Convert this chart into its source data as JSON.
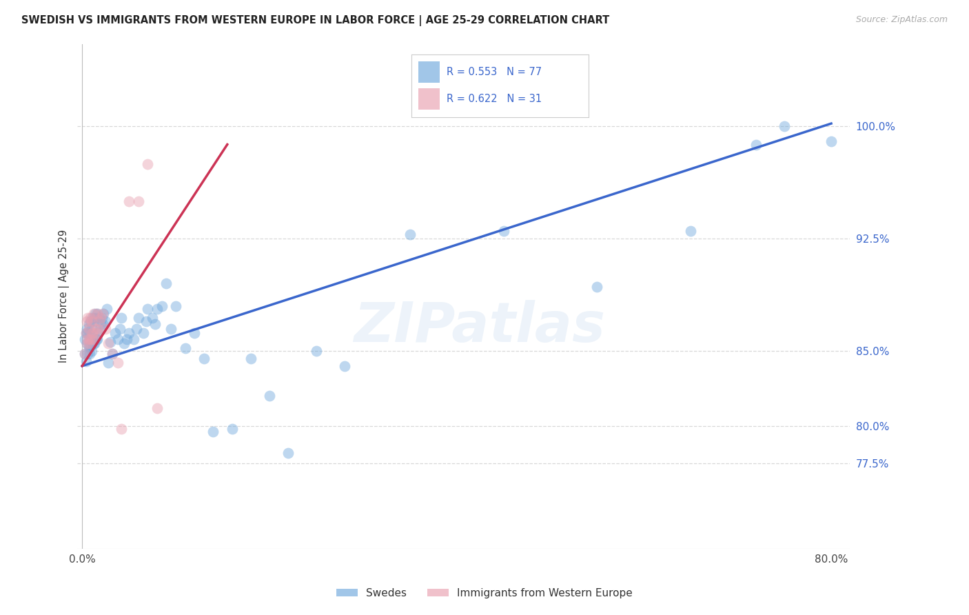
{
  "title": "SWEDISH VS IMMIGRANTS FROM WESTERN EUROPE IN LABOR FORCE | AGE 25-29 CORRELATION CHART",
  "source": "Source: ZipAtlas.com",
  "ylabel": "In Labor Force | Age 25-29",
  "xlim": [
    -0.005,
    0.82
  ],
  "ylim": [
    0.718,
    1.055
  ],
  "yticks_right": [
    0.775,
    0.8,
    0.85,
    0.925,
    1.0
  ],
  "ytick_labels_right": [
    "77.5%",
    "80.0%",
    "85.0%",
    "92.5%",
    "100.0%"
  ],
  "grid_color": "#d8d8d8",
  "background_color": "#ffffff",
  "blue_color": "#6fa8dc",
  "pink_color": "#e8a0b0",
  "blue_line_color": "#3a66cc",
  "pink_line_color": "#cc3355",
  "legend_r_blue": "R = 0.553",
  "legend_n_blue": "N = 77",
  "legend_r_pink": "R = 0.622",
  "legend_n_pink": "N = 31",
  "blue_x": [
    0.003,
    0.003,
    0.004,
    0.004,
    0.005,
    0.005,
    0.006,
    0.006,
    0.007,
    0.007,
    0.008,
    0.008,
    0.009,
    0.009,
    0.01,
    0.01,
    0.011,
    0.011,
    0.012,
    0.012,
    0.013,
    0.013,
    0.014,
    0.014,
    0.015,
    0.015,
    0.016,
    0.016,
    0.017,
    0.018,
    0.019,
    0.02,
    0.021,
    0.022,
    0.023,
    0.025,
    0.026,
    0.028,
    0.03,
    0.032,
    0.035,
    0.038,
    0.04,
    0.042,
    0.045,
    0.048,
    0.05,
    0.055,
    0.058,
    0.06,
    0.065,
    0.068,
    0.07,
    0.075,
    0.078,
    0.08,
    0.085,
    0.09,
    0.095,
    0.1,
    0.11,
    0.12,
    0.13,
    0.14,
    0.16,
    0.18,
    0.2,
    0.22,
    0.25,
    0.28,
    0.35,
    0.45,
    0.55,
    0.65,
    0.72,
    0.75,
    0.8
  ],
  "blue_y": [
    0.848,
    0.858,
    0.843,
    0.862,
    0.855,
    0.865,
    0.848,
    0.862,
    0.853,
    0.868,
    0.848,
    0.862,
    0.853,
    0.87,
    0.85,
    0.865,
    0.855,
    0.872,
    0.855,
    0.87,
    0.855,
    0.872,
    0.858,
    0.875,
    0.858,
    0.872,
    0.858,
    0.875,
    0.862,
    0.872,
    0.865,
    0.868,
    0.872,
    0.868,
    0.875,
    0.87,
    0.878,
    0.842,
    0.856,
    0.848,
    0.862,
    0.858,
    0.865,
    0.872,
    0.855,
    0.858,
    0.862,
    0.858,
    0.865,
    0.872,
    0.862,
    0.87,
    0.878,
    0.872,
    0.868,
    0.878,
    0.88,
    0.895,
    0.865,
    0.88,
    0.852,
    0.862,
    0.845,
    0.796,
    0.798,
    0.845,
    0.82,
    0.782,
    0.85,
    0.84,
    0.928,
    0.93,
    0.893,
    0.93,
    0.988,
    1.0,
    0.99
  ],
  "pink_x": [
    0.003,
    0.004,
    0.005,
    0.005,
    0.006,
    0.006,
    0.007,
    0.007,
    0.008,
    0.009,
    0.01,
    0.01,
    0.011,
    0.012,
    0.013,
    0.014,
    0.015,
    0.016,
    0.017,
    0.018,
    0.02,
    0.022,
    0.025,
    0.028,
    0.032,
    0.038,
    0.042,
    0.05,
    0.06,
    0.07,
    0.08
  ],
  "pink_y": [
    0.848,
    0.862,
    0.855,
    0.87,
    0.858,
    0.872,
    0.855,
    0.865,
    0.858,
    0.872,
    0.858,
    0.87,
    0.862,
    0.875,
    0.858,
    0.865,
    0.862,
    0.875,
    0.865,
    0.87,
    0.872,
    0.875,
    0.865,
    0.855,
    0.848,
    0.842,
    0.798,
    0.95,
    0.95,
    0.975,
    0.812
  ],
  "watermark_text": "ZIPatlas",
  "marker_size": 130,
  "marker_alpha": 0.45,
  "line_width": 2.5
}
